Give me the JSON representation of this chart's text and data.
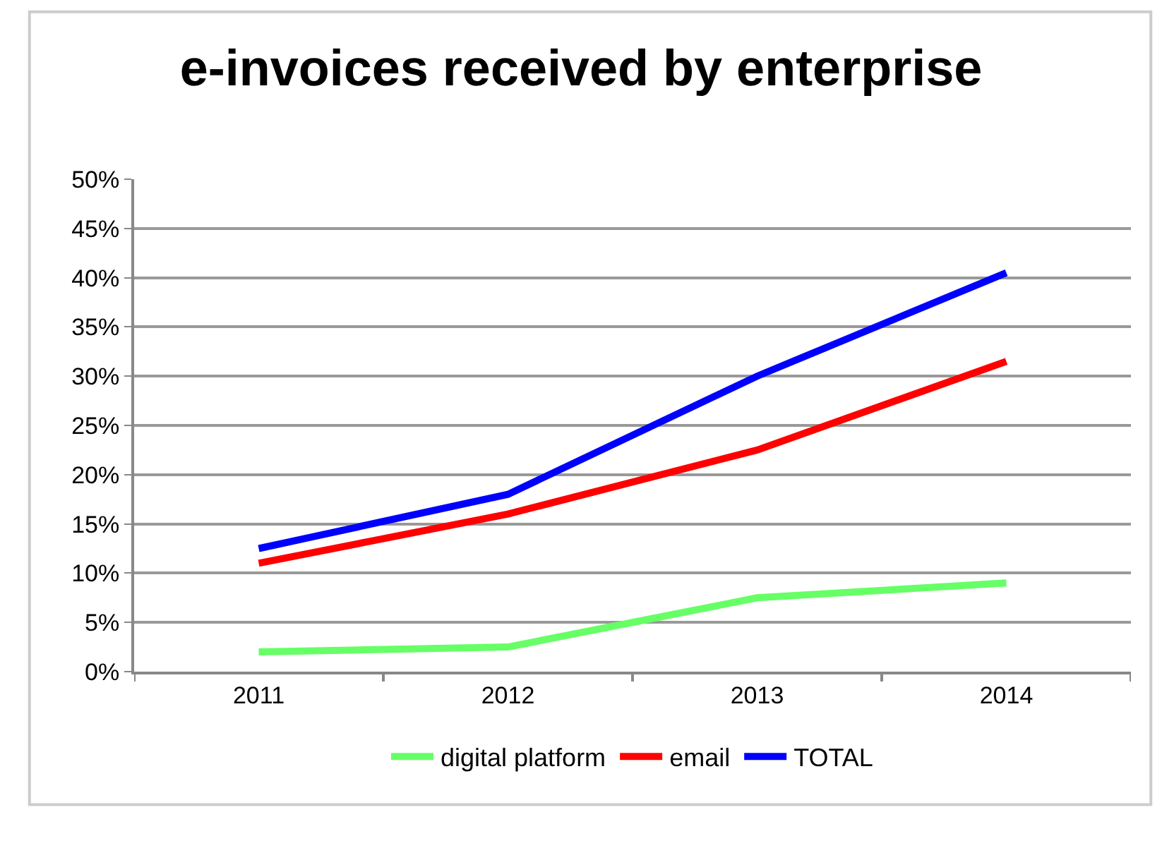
{
  "chart_data": {
    "type": "line",
    "title": "e-invoices received by enterprise",
    "categories": [
      "2011",
      "2012",
      "2013",
      "2014"
    ],
    "series": [
      {
        "name": "digital platform",
        "color": "#66ff66",
        "values": [
          2,
          2.5,
          7.5,
          9
        ]
      },
      {
        "name": "email",
        "color": "#ff0000",
        "values": [
          11,
          16,
          22.5,
          31.5
        ]
      },
      {
        "name": "TOTAL",
        "color": "#0000ff",
        "values": [
          12.5,
          18,
          30,
          40.5
        ]
      }
    ],
    "ylim": [
      0,
      50
    ],
    "yticks": [
      {
        "value": 0,
        "label": "0%"
      },
      {
        "value": 5,
        "label": "5%"
      },
      {
        "value": 10,
        "label": "10%"
      },
      {
        "value": 15,
        "label": "15%"
      },
      {
        "value": 20,
        "label": "20%"
      },
      {
        "value": 25,
        "label": "25%"
      },
      {
        "value": 30,
        "label": "30%"
      },
      {
        "value": 35,
        "label": "35%"
      },
      {
        "value": 40,
        "label": "40%"
      },
      {
        "value": 45,
        "label": "45%"
      },
      {
        "value": 50,
        "label": "50%"
      }
    ],
    "grid": "y",
    "legend": "bottom",
    "marker": "none",
    "line_style": "solid"
  }
}
